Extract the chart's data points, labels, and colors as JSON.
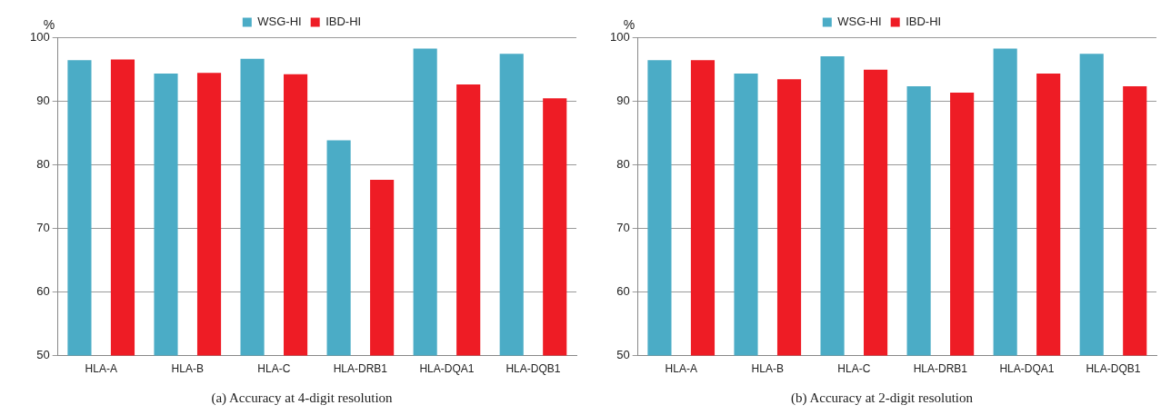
{
  "chart_data": [
    {
      "type": "bar",
      "title": "(a) Accuracy at 4-digit resolution",
      "ylabel": "%",
      "categories": [
        "HLA-A",
        "HLA-B",
        "HLA-C",
        "HLA-DRB1",
        "HLA-DQA1",
        "HLA-DQB1"
      ],
      "series": [
        {
          "name": "WSG-HI",
          "color": "#4bacc6",
          "values": [
            96.4,
            94.3,
            96.6,
            83.8,
            98.2,
            97.4
          ]
        },
        {
          "name": "IBD-HI",
          "color": "#ee1c25",
          "values": [
            96.5,
            94.4,
            94.2,
            77.6,
            92.6,
            90.4
          ]
        }
      ],
      "ylim": [
        50,
        100
      ],
      "yticks": [
        50,
        60,
        70,
        80,
        90,
        100
      ],
      "grid": "y",
      "legend": "top"
    },
    {
      "type": "bar",
      "title": "(b) Accuracy at 2-digit resolution",
      "ylabel": "%",
      "categories": [
        "HLA-A",
        "HLA-B",
        "HLA-C",
        "HLA-DRB1",
        "HLA-DQA1",
        "HLA-DQB1"
      ],
      "series": [
        {
          "name": "WSG-HI",
          "color": "#4bacc6",
          "values": [
            96.4,
            94.3,
            97.0,
            92.3,
            98.2,
            97.4
          ]
        },
        {
          "name": "IBD-HI",
          "color": "#ee1c25",
          "values": [
            96.4,
            93.4,
            94.9,
            91.3,
            94.3,
            92.3
          ]
        }
      ],
      "ylim": [
        50,
        100
      ],
      "yticks": [
        50,
        60,
        70,
        80,
        90,
        100
      ],
      "grid": "y",
      "legend": "top"
    }
  ]
}
